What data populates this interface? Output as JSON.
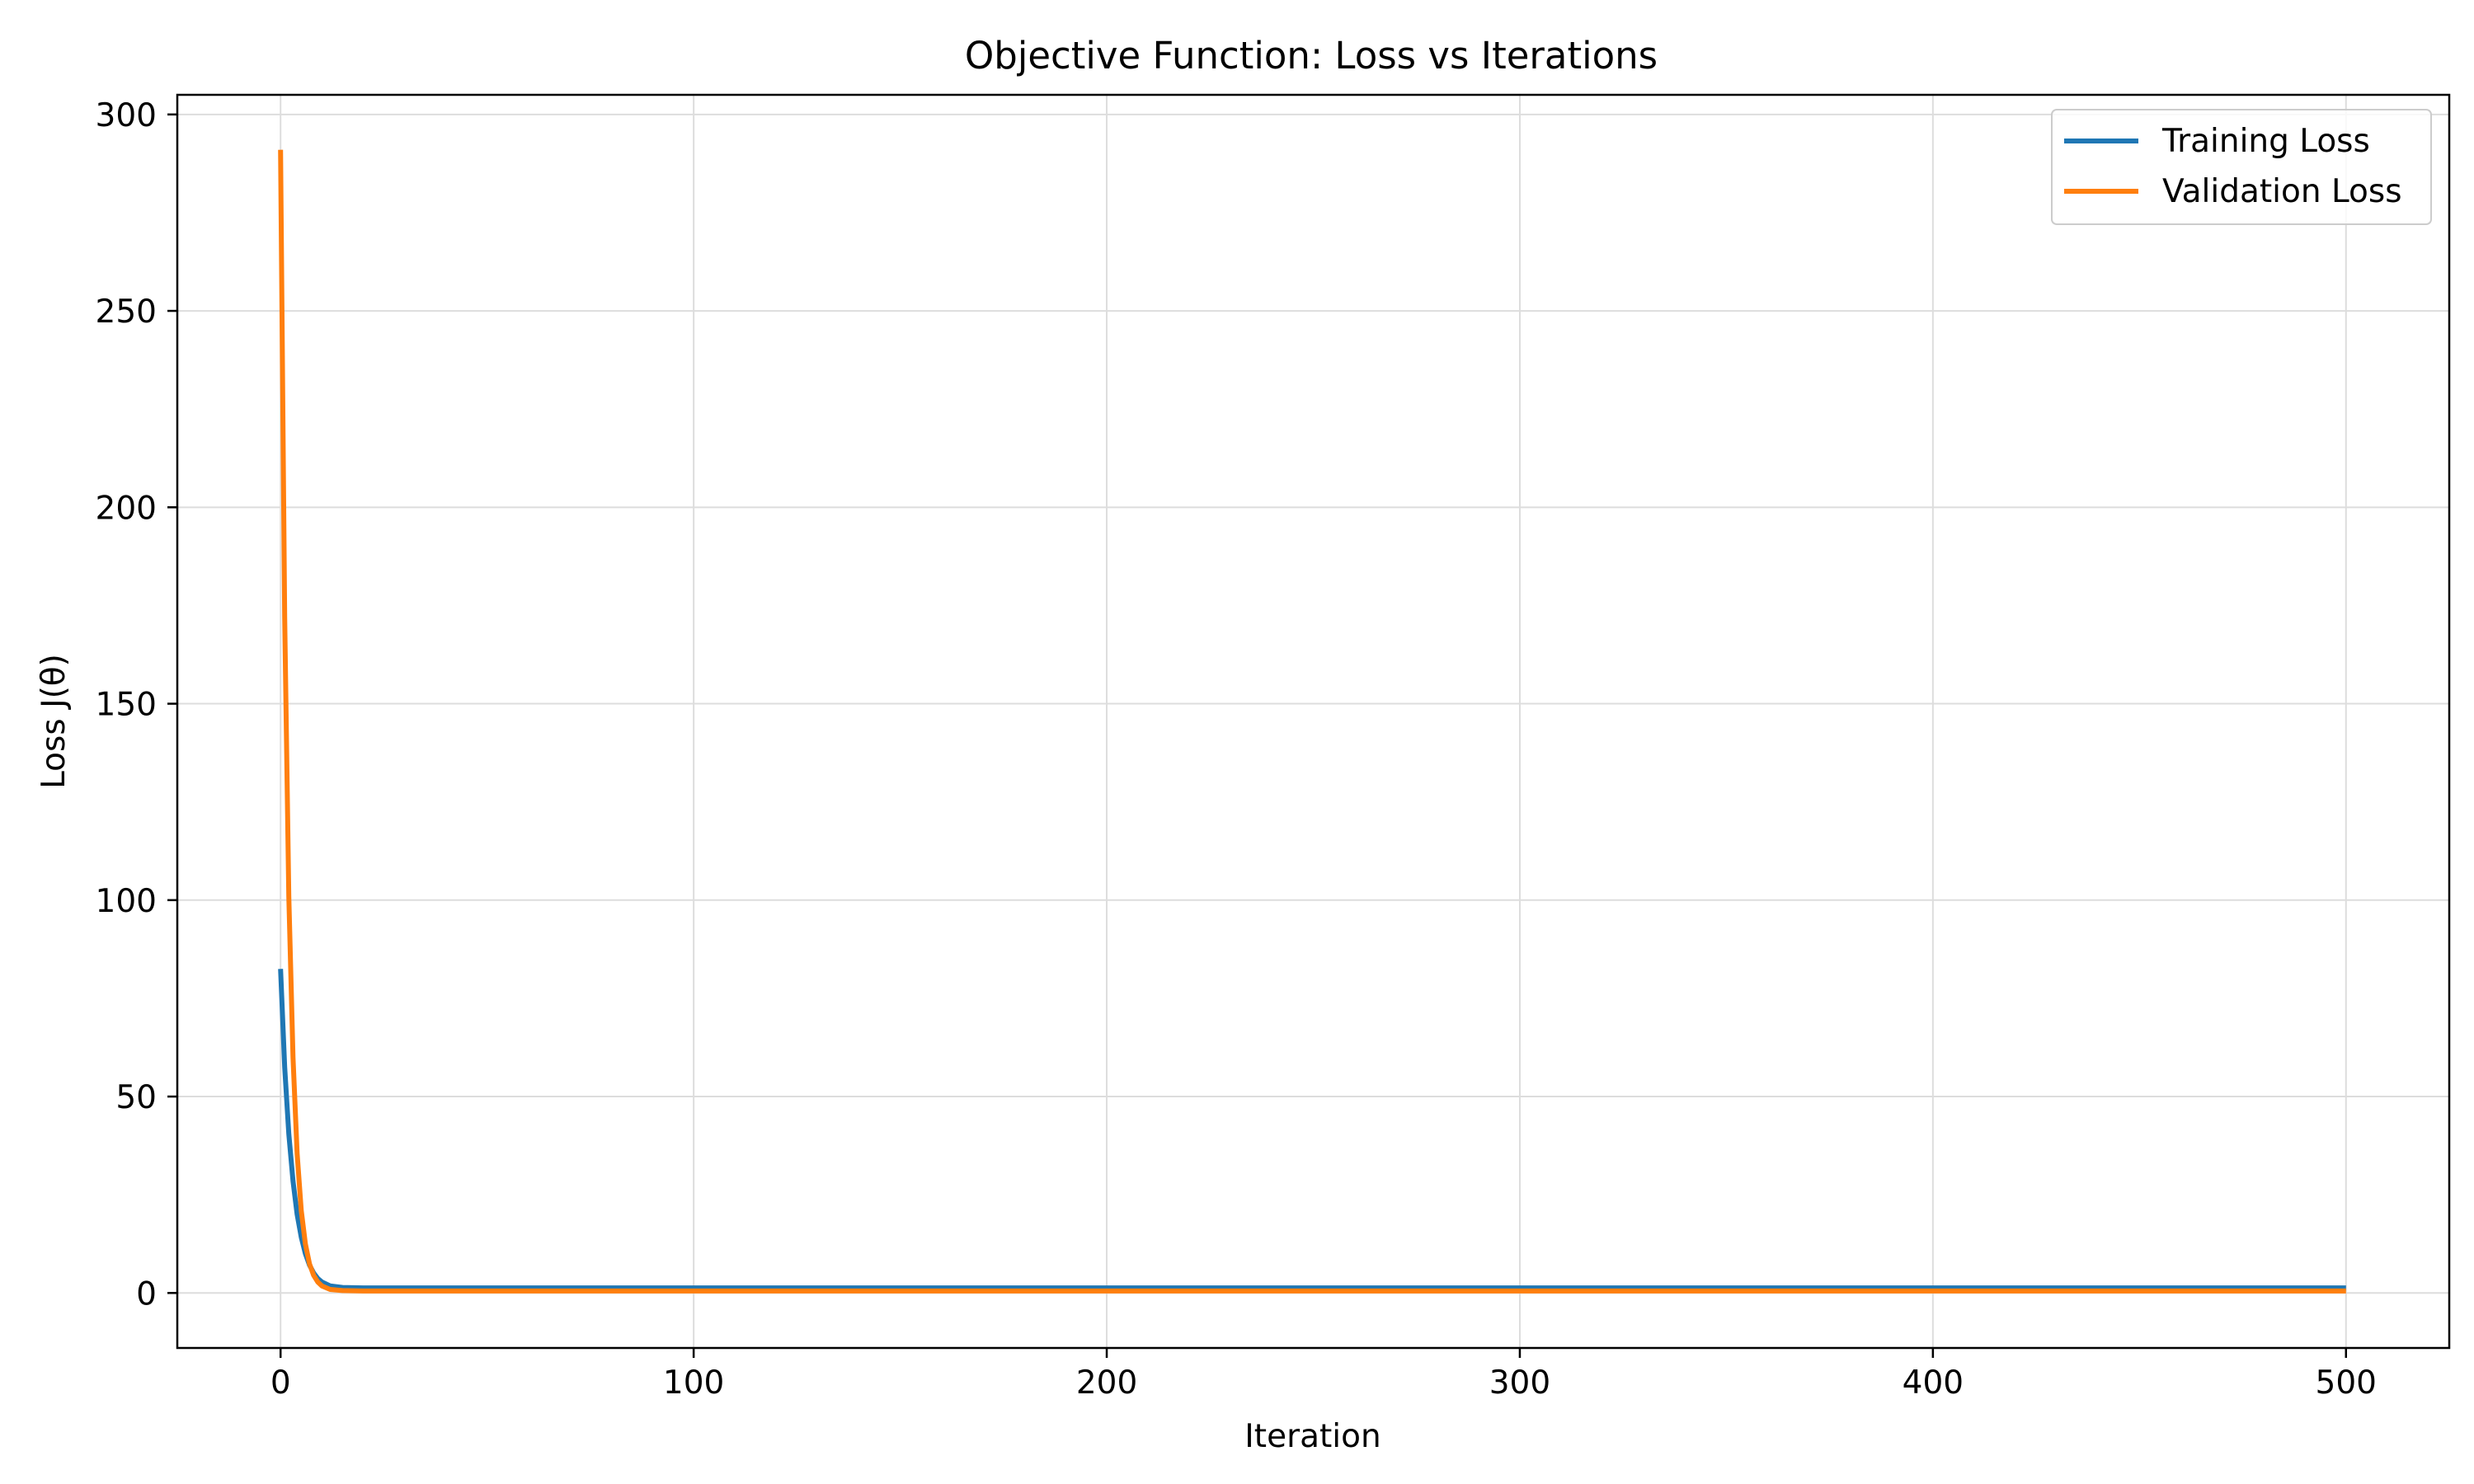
{
  "chart_data": {
    "type": "line",
    "title": "Objective Function: Loss vs Iterations",
    "xlabel": "Iteration",
    "ylabel": "Loss J(θ)",
    "xlim": [
      -25,
      525
    ],
    "ylim": [
      -14,
      305
    ],
    "xticks": [
      0,
      100,
      200,
      300,
      400,
      500
    ],
    "yticks": [
      0,
      50,
      100,
      150,
      200,
      250,
      300
    ],
    "grid": true,
    "legend_position": "top-right",
    "series": [
      {
        "name": "Training Loss",
        "color": "#1f77b4",
        "x": [
          0,
          1,
          2,
          3,
          4,
          5,
          6,
          7,
          8,
          9,
          10,
          12,
          15,
          20,
          50,
          100,
          200,
          300,
          400,
          500
        ],
        "y": [
          82.5,
          57.5,
          40.5,
          28.5,
          20.0,
          14.2,
          10.0,
          7.1,
          5.1,
          3.7,
          2.8,
          1.8,
          1.4,
          1.3,
          1.3,
          1.3,
          1.3,
          1.3,
          1.3,
          1.3
        ]
      },
      {
        "name": "Validation Loss",
        "color": "#ff7f0e",
        "x": [
          0,
          1,
          2,
          3,
          4,
          5,
          6,
          7,
          8,
          9,
          10,
          12,
          15,
          20,
          50,
          100,
          200,
          300,
          400,
          500
        ],
        "y": [
          291,
          172,
          101,
          60,
          35.5,
          21,
          12.5,
          7.4,
          4.5,
          2.8,
          1.8,
          0.9,
          0.6,
          0.5,
          0.5,
          0.5,
          0.5,
          0.5,
          0.5,
          0.5
        ]
      }
    ]
  }
}
